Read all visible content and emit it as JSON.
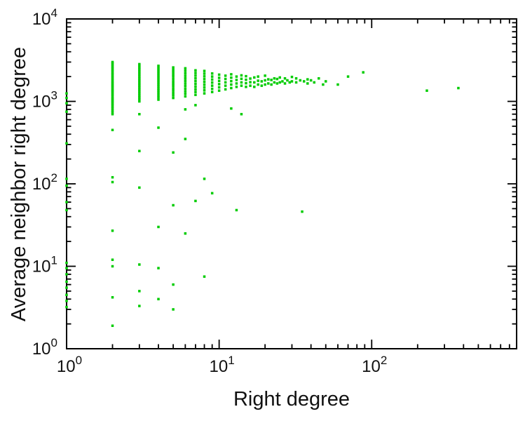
{
  "chart_data": {
    "type": "scatter",
    "title": "",
    "xlabel": "Right degree",
    "ylabel": "Average neighbor right degree",
    "x_scale": "log",
    "y_scale": "log",
    "x_range": [
      1,
      891
    ],
    "y_range": [
      1,
      10000
    ],
    "grid": false,
    "legend": false,
    "background": "#ffffff",
    "frame_color": "#000000",
    "point_color": "#00cc00",
    "tick_base": "10",
    "x_ticks": [
      {
        "value": 1,
        "exp": "0"
      },
      {
        "value": 10,
        "exp": "1"
      },
      {
        "value": 100,
        "exp": "2"
      }
    ],
    "y_ticks": [
      {
        "value": 1,
        "exp": "0"
      },
      {
        "value": 10,
        "exp": "1"
      },
      {
        "value": 100,
        "exp": "2"
      },
      {
        "value": 1000,
        "exp": "3"
      },
      {
        "value": 10000,
        "exp": "4"
      }
    ],
    "points": [
      [
        1,
        3.2
      ],
      [
        1,
        3.8
      ],
      [
        1,
        4.5
      ],
      [
        1,
        5.5
      ],
      [
        1,
        6.5
      ],
      [
        1,
        8
      ],
      [
        1,
        9.5
      ],
      [
        1,
        11
      ],
      [
        1,
        48
      ],
      [
        1,
        60
      ],
      [
        1,
        95
      ],
      [
        1,
        115
      ],
      [
        1,
        310
      ],
      [
        1,
        750
      ],
      [
        1,
        950
      ],
      [
        1,
        1100
      ],
      [
        1,
        1250
      ],
      [
        2,
        1.9
      ],
      [
        2,
        4.2
      ],
      [
        2,
        10
      ],
      [
        2,
        12
      ],
      [
        2,
        27
      ],
      [
        2,
        105
      ],
      [
        2,
        120
      ],
      [
        2,
        450
      ],
      [
        2,
        700
      ],
      [
        2,
        740
      ],
      [
        2,
        780
      ],
      [
        2,
        820
      ],
      [
        2,
        860
      ],
      [
        2,
        900
      ],
      [
        2,
        940
      ],
      [
        2,
        980
      ],
      [
        2,
        1020
      ],
      [
        2,
        1060
      ],
      [
        2,
        1100
      ],
      [
        2,
        1150
      ],
      [
        2,
        1200
      ],
      [
        2,
        1250
      ],
      [
        2,
        1300
      ],
      [
        2,
        1350
      ],
      [
        2,
        1400
      ],
      [
        2,
        1460
      ],
      [
        2,
        1520
      ],
      [
        2,
        1580
      ],
      [
        2,
        1650
      ],
      [
        2,
        1720
      ],
      [
        2,
        1800
      ],
      [
        2,
        1880
      ],
      [
        2,
        1960
      ],
      [
        2,
        2050
      ],
      [
        2,
        2140
      ],
      [
        2,
        2230
      ],
      [
        2,
        2330
      ],
      [
        2,
        2430
      ],
      [
        2,
        2540
      ],
      [
        2,
        2650
      ],
      [
        2,
        2770
      ],
      [
        2,
        2890
      ],
      [
        2,
        3000
      ],
      [
        3,
        3.3
      ],
      [
        3,
        5
      ],
      [
        3,
        10.5
      ],
      [
        3,
        90
      ],
      [
        3,
        250
      ],
      [
        3,
        700
      ],
      [
        3,
        1000
      ],
      [
        3,
        1060
      ],
      [
        3,
        1120
      ],
      [
        3,
        1180
      ],
      [
        3,
        1250
      ],
      [
        3,
        1320
      ],
      [
        3,
        1390
      ],
      [
        3,
        1470
      ],
      [
        3,
        1550
      ],
      [
        3,
        1630
      ],
      [
        3,
        1720
      ],
      [
        3,
        1810
      ],
      [
        3,
        1900
      ],
      [
        3,
        2000
      ],
      [
        3,
        2100
      ],
      [
        3,
        2210
      ],
      [
        3,
        2320
      ],
      [
        3,
        2440
      ],
      [
        3,
        2560
      ],
      [
        3,
        2690
      ],
      [
        3,
        2830
      ],
      [
        4,
        4
      ],
      [
        4,
        9.5
      ],
      [
        4,
        30
      ],
      [
        4,
        480
      ],
      [
        4,
        1050
      ],
      [
        4,
        1120
      ],
      [
        4,
        1190
      ],
      [
        4,
        1270
      ],
      [
        4,
        1350
      ],
      [
        4,
        1430
      ],
      [
        4,
        1520
      ],
      [
        4,
        1610
      ],
      [
        4,
        1710
      ],
      [
        4,
        1810
      ],
      [
        4,
        1920
      ],
      [
        4,
        2030
      ],
      [
        4,
        2150
      ],
      [
        4,
        2280
      ],
      [
        4,
        2410
      ],
      [
        4,
        2550
      ],
      [
        4,
        2700
      ],
      [
        5,
        3
      ],
      [
        5,
        6
      ],
      [
        5,
        55
      ],
      [
        5,
        240
      ],
      [
        5,
        1100
      ],
      [
        5,
        1180
      ],
      [
        5,
        1260
      ],
      [
        5,
        1350
      ],
      [
        5,
        1440
      ],
      [
        5,
        1540
      ],
      [
        5,
        1640
      ],
      [
        5,
        1750
      ],
      [
        5,
        1870
      ],
      [
        5,
        2000
      ],
      [
        5,
        2130
      ],
      [
        5,
        2270
      ],
      [
        5,
        2420
      ],
      [
        5,
        2580
      ],
      [
        6,
        25
      ],
      [
        6,
        350
      ],
      [
        6,
        800
      ],
      [
        6,
        1150
      ],
      [
        6,
        1240
      ],
      [
        6,
        1330
      ],
      [
        6,
        1430
      ],
      [
        6,
        1540
      ],
      [
        6,
        1650
      ],
      [
        6,
        1770
      ],
      [
        6,
        1900
      ],
      [
        6,
        2040
      ],
      [
        6,
        2190
      ],
      [
        6,
        2350
      ],
      [
        6,
        2520
      ],
      [
        7,
        62
      ],
      [
        7,
        900
      ],
      [
        7,
        1200
      ],
      [
        7,
        1300
      ],
      [
        7,
        1400
      ],
      [
        7,
        1510
      ],
      [
        7,
        1630
      ],
      [
        7,
        1760
      ],
      [
        7,
        1900
      ],
      [
        7,
        2050
      ],
      [
        7,
        2210
      ],
      [
        7,
        2380
      ],
      [
        8,
        7.5
      ],
      [
        8,
        115
      ],
      [
        8,
        1250
      ],
      [
        8,
        1360
      ],
      [
        8,
        1470
      ],
      [
        8,
        1590
      ],
      [
        8,
        1720
      ],
      [
        8,
        1860
      ],
      [
        8,
        2010
      ],
      [
        8,
        2170
      ],
      [
        8,
        2340
      ],
      [
        9,
        77
      ],
      [
        9,
        1300
      ],
      [
        9,
        1420
      ],
      [
        9,
        1550
      ],
      [
        9,
        1690
      ],
      [
        9,
        1840
      ],
      [
        9,
        2000
      ],
      [
        9,
        2180
      ],
      [
        10,
        1350
      ],
      [
        10,
        1480
      ],
      [
        10,
        1620
      ],
      [
        10,
        1770
      ],
      [
        10,
        1930
      ],
      [
        10,
        2110
      ],
      [
        11,
        1400
      ],
      [
        11,
        1550
      ],
      [
        11,
        1700
      ],
      [
        11,
        1870
      ],
      [
        11,
        2050
      ],
      [
        12,
        820
      ],
      [
        12,
        1450
      ],
      [
        12,
        1600
      ],
      [
        12,
        1760
      ],
      [
        12,
        1940
      ],
      [
        12,
        2130
      ],
      [
        13,
        48
      ],
      [
        13,
        1500
      ],
      [
        13,
        1650
      ],
      [
        13,
        1820
      ],
      [
        13,
        2000
      ],
      [
        14,
        700
      ],
      [
        14,
        1550
      ],
      [
        14,
        1700
      ],
      [
        14,
        1880
      ],
      [
        14,
        2070
      ],
      [
        15,
        1500
      ],
      [
        15,
        1660
      ],
      [
        15,
        1830
      ],
      [
        15,
        2020
      ],
      [
        16,
        1550
      ],
      [
        16,
        1710
      ],
      [
        16,
        1890
      ],
      [
        17,
        1500
      ],
      [
        17,
        1700
      ],
      [
        17,
        1950
      ],
      [
        18,
        1600
      ],
      [
        18,
        1780
      ],
      [
        18,
        2000
      ],
      [
        19,
        1550
      ],
      [
        19,
        1750
      ],
      [
        20,
        1600
      ],
      [
        20,
        1800
      ],
      [
        20,
        2050
      ],
      [
        21,
        1650
      ],
      [
        21,
        1850
      ],
      [
        22,
        1600
      ],
      [
        22,
        1820
      ],
      [
        23,
        1700
      ],
      [
        23,
        1900
      ],
      [
        24,
        1650
      ],
      [
        24,
        1870
      ],
      [
        25,
        1700
      ],
      [
        25,
        1950
      ],
      [
        26,
        1750
      ],
      [
        27,
        1650
      ],
      [
        27,
        1900
      ],
      [
        28,
        1800
      ],
      [
        29,
        1700
      ],
      [
        30,
        1750
      ],
      [
        30,
        1980
      ],
      [
        32,
        1700
      ],
      [
        32,
        1900
      ],
      [
        34,
        1800
      ],
      [
        35,
        46
      ],
      [
        36,
        1750
      ],
      [
        38,
        1650
      ],
      [
        38,
        1850
      ],
      [
        40,
        1800
      ],
      [
        42,
        1700
      ],
      [
        45,
        1900
      ],
      [
        48,
        1600
      ],
      [
        50,
        1750
      ],
      [
        60,
        1600
      ],
      [
        70,
        2000
      ],
      [
        88,
        2250
      ],
      [
        230,
        1350
      ],
      [
        370,
        1450
      ]
    ]
  }
}
